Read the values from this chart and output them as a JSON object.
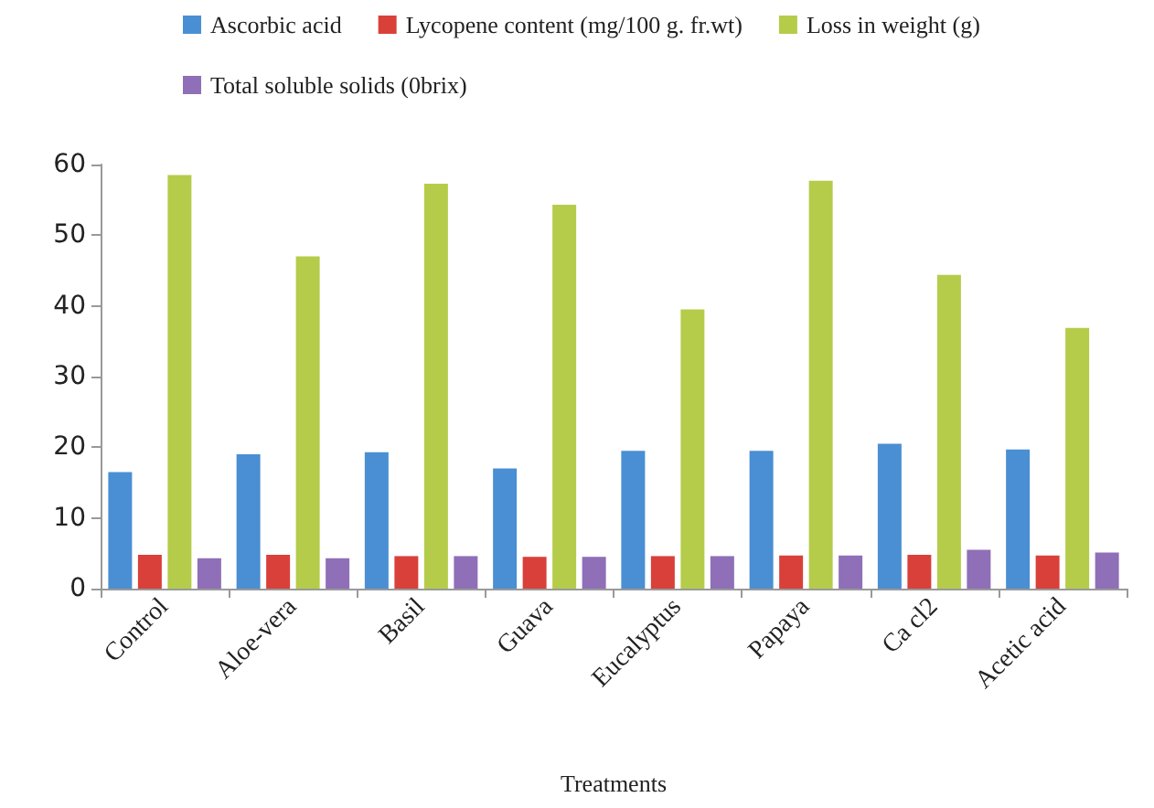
{
  "chart_data": {
    "type": "bar",
    "xlabel": "Treatments",
    "categories": [
      "Control",
      "Aloe-vera",
      "Basil",
      "Guava",
      "Eucalyptus",
      "Papaya",
      "Ca cl2",
      "Acetic acid"
    ],
    "series": [
      {
        "name": "Ascorbic acid",
        "color": "#4a8fd3",
        "values": [
          16.5,
          19,
          19.3,
          17,
          19.5,
          19.5,
          20.5,
          19.7
        ]
      },
      {
        "name": "Lycopene content (mg/100 g. fr.wt)",
        "color": "#d9403a",
        "values": [
          4.8,
          4.8,
          4.6,
          4.5,
          4.6,
          4.7,
          4.8,
          4.7
        ]
      },
      {
        "name": "Loss in weight (g)",
        "color": "#b5cc4a",
        "values": [
          58.5,
          47,
          57.3,
          54.3,
          39.5,
          57.7,
          44.4,
          36.9
        ]
      },
      {
        "name": "Total soluble solids (0brix)",
        "color": "#8f6fb8",
        "values": [
          4.3,
          4.3,
          4.6,
          4.5,
          4.6,
          4.7,
          5.5,
          5.1
        ]
      }
    ],
    "ylim": [
      0,
      60
    ],
    "yticks": [
      0,
      10,
      20,
      30,
      40,
      50,
      60
    ],
    "grid": false,
    "legend": "top"
  }
}
